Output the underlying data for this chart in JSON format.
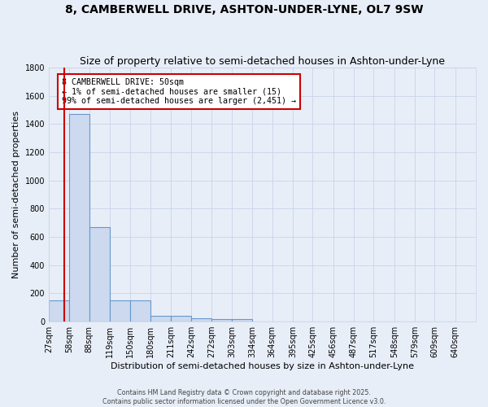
{
  "title": "8, CAMBERWELL DRIVE, ASHTON-UNDER-LYNE, OL7 9SW",
  "subtitle": "Size of property relative to semi-detached houses in Ashton-under-Lyne",
  "xlabel": "Distribution of semi-detached houses by size in Ashton-under-Lyne",
  "ylabel": "Number of semi-detached properties",
  "footer_line1": "Contains HM Land Registry data © Crown copyright and database right 2025.",
  "footer_line2": "Contains public sector information licensed under the Open Government Licence v3.0.",
  "annotation_line1": "8 CAMBERWELL DRIVE: 50sqm",
  "annotation_line2": "← 1% of semi-detached houses are smaller (15)",
  "annotation_line3": "99% of semi-detached houses are larger (2,451) →",
  "bin_labels": [
    "27sqm",
    "58sqm",
    "88sqm",
    "119sqm",
    "150sqm",
    "180sqm",
    "211sqm",
    "242sqm",
    "272sqm",
    "303sqm",
    "334sqm",
    "364sqm",
    "395sqm",
    "425sqm",
    "456sqm",
    "487sqm",
    "517sqm",
    "548sqm",
    "579sqm",
    "609sqm",
    "640sqm"
  ],
  "bin_starts": [
    27,
    58,
    88,
    119,
    150,
    180,
    211,
    242,
    272,
    303,
    334,
    364,
    395,
    425,
    456,
    487,
    517,
    548,
    579,
    609,
    640
  ],
  "bar_values": [
    150,
    1470,
    670,
    150,
    150,
    40,
    40,
    25,
    15,
    15,
    0,
    0,
    0,
    0,
    0,
    0,
    0,
    0,
    0,
    0
  ],
  "bar_color": "#ccd9ee",
  "bar_edge_color": "#6699cc",
  "subject_sqm": 50,
  "ylim_max": 1800,
  "yticks": [
    0,
    200,
    400,
    600,
    800,
    1000,
    1200,
    1400,
    1600,
    1800
  ],
  "background_color": "#e8eef8",
  "plot_background_color": "#e8eef8",
  "grid_color": "#c8d4e8",
  "title_fontsize": 10,
  "subtitle_fontsize": 9,
  "axis_label_fontsize": 8,
  "tick_fontsize": 7,
  "annotation_box_color": "#ffffff",
  "annotation_border_color": "#cc0000",
  "marker_color": "#cc0000",
  "marker_linewidth": 1.5
}
